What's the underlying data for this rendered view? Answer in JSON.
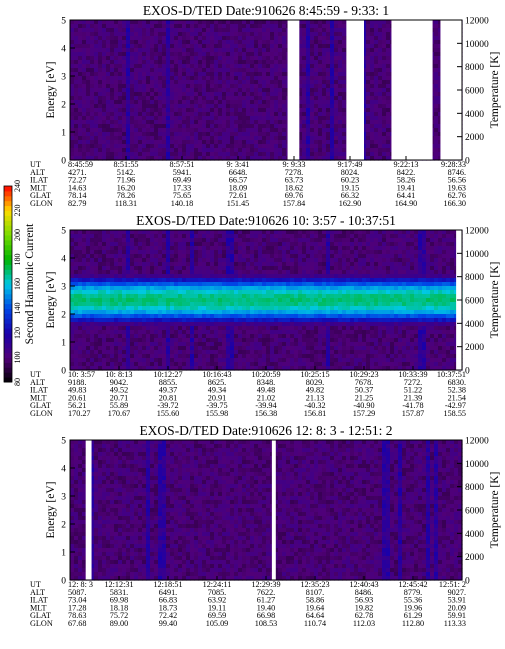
{
  "chart_data": [
    {
      "type": "heatmap",
      "title": "EXOS-D/TED   Date:910626  8:45:59 - 9:33: 1",
      "ylabel": "Energy [eV]",
      "y2label": "Temperature [K]",
      "ylim": [
        0,
        5
      ],
      "y2lim": [
        0,
        12000
      ],
      "yticks": [
        "0",
        "1",
        "2",
        "3",
        "4",
        "5"
      ],
      "y2ticks": [
        "0",
        "2000",
        "4000",
        "6000",
        "8000",
        "10000",
        "12000"
      ],
      "background_level": 100,
      "row_labels": [
        "UT",
        "ALT",
        "ILAT",
        "MLT",
        "GLAT",
        "GLON"
      ],
      "table": [
        [
          "8:45:59",
          "4271.",
          "72.27",
          "14.63",
          "78.14",
          "82.79"
        ],
        [
          "8:51:55",
          "5142.",
          "71.96",
          "16.20",
          "78.26",
          "118.31"
        ],
        [
          "8:57:51",
          "5941.",
          "69.49",
          "17.33",
          "75.65",
          "140.18"
        ],
        [
          "9: 3:41",
          "6648.",
          "66.57",
          "18.09",
          "72.61",
          "151.45"
        ],
        [
          "9: 9:33",
          "7278.",
          "63.73",
          "18.62",
          "69.76",
          "157.84"
        ],
        [
          "9:17:49",
          "8024.",
          "60.23",
          "19.15",
          "66.32",
          "162.90"
        ],
        [
          "9:22:13",
          "8422.",
          "58.26",
          "19.41",
          "64.41",
          "164.90"
        ],
        [
          "9:28:33",
          "8746.",
          "56.56",
          "19.63",
          "62.76",
          "166.30"
        ]
      ],
      "data_gaps": [
        [
          0.555,
          0.585
        ],
        [
          0.705,
          0.75
        ],
        [
          0.82,
          0.925
        ],
        [
          0.945,
          1.0
        ]
      ]
    },
    {
      "type": "heatmap",
      "title": "EXOS-D/TED   Date:910626  10: 3:57 - 10:37:51",
      "ylabel": "Energy [eV]",
      "y2label": "Temperature [K]",
      "ylim": [
        0,
        5
      ],
      "y2lim": [
        0,
        12000
      ],
      "yticks": [
        "0",
        "1",
        "2",
        "3",
        "4",
        "5"
      ],
      "y2ticks": [
        "0",
        "2000",
        "4000",
        "6000",
        "8000",
        "10000",
        "12000"
      ],
      "background_level": 100,
      "band": {
        "center_energy": 2.5,
        "half_width": 0.9,
        "peak_level": 170
      },
      "row_labels": [
        "UT",
        "ALT",
        "ILAT",
        "MLT",
        "GLAT",
        "GLON"
      ],
      "table": [
        [
          "10: 3:57",
          "9188.",
          "49.83",
          "20.61",
          "56.21",
          "170.27"
        ],
        [
          "10: 8:13",
          "9042.",
          "49.52",
          "20.71",
          "55.89",
          "170.67"
        ],
        [
          "10:12:27",
          "8855.",
          "49.37",
          "20.81",
          "-39.72",
          "155.60"
        ],
        [
          "10:16:43",
          "8625.",
          "49.34",
          "20.91",
          "-39.75",
          "155.98"
        ],
        [
          "10:20:59",
          "8348.",
          "49.48",
          "21.02",
          "-39.94",
          "156.38"
        ],
        [
          "10:25:15",
          "8029.",
          "49.82",
          "21.13",
          "-40.32",
          "156.81"
        ],
        [
          "10:29:23",
          "7678.",
          "50.37",
          "21.25",
          "-40.90",
          "157.29"
        ],
        [
          "10:33:39",
          "7272.",
          "51.22",
          "21.39",
          "-41.78",
          "157.87"
        ],
        [
          "10:37:51",
          "6830.",
          "52.38",
          "21.54",
          "-42.97",
          "158.55"
        ]
      ],
      "data_gaps": [
        [
          0.985,
          1.0
        ]
      ]
    },
    {
      "type": "heatmap",
      "title": "EXOS-D/TED   Date:910626  12: 8: 3 - 12:51: 2",
      "ylabel": "Energy [eV]",
      "y2label": "Temperature [K]",
      "ylim": [
        0,
        5
      ],
      "y2lim": [
        0,
        12000
      ],
      "yticks": [
        "0",
        "1",
        "2",
        "3",
        "4",
        "5"
      ],
      "y2ticks": [
        "0",
        "2000",
        "4000",
        "6000",
        "8000",
        "10000",
        "12000"
      ],
      "background_level": 100,
      "row_labels": [
        "UT",
        "ALT",
        "ILAT",
        "MLT",
        "GLAT",
        "GLON"
      ],
      "table": [
        [
          "12: 8: 3",
          "5087.",
          "73.04",
          "17.28",
          "78.63",
          "67.68"
        ],
        [
          "12:12:31",
          "5831.",
          "69.98",
          "18.18",
          "75.72",
          "89.00"
        ],
        [
          "12:18:51",
          "6491.",
          "66.83",
          "18.73",
          "72.42",
          "99.40"
        ],
        [
          "12:24:11",
          "7085.",
          "63.92",
          "19.11",
          "69.59",
          "105.09"
        ],
        [
          "12:29:39",
          "7622.",
          "61.27",
          "19.40",
          "66.98",
          "108.53"
        ],
        [
          "12:35:23",
          "8107.",
          "58.86",
          "19.64",
          "64.64",
          "110.74"
        ],
        [
          "12:40:43",
          "8486.",
          "56.93",
          "19.82",
          "62.78",
          "112.03"
        ],
        [
          "12:45:42",
          "8779.",
          "55.36",
          "19.96",
          "61.29",
          "112.80"
        ],
        [
          "12:51: 2",
          "9027.",
          "53.91",
          "20.09",
          "59.91",
          "113.33"
        ]
      ],
      "data_gaps": [
        [
          0.04,
          0.055
        ],
        [
          0.515,
          0.525
        ]
      ]
    },
    {
      "type": "colorbar",
      "label": "Second Harmonic Current",
      "ticks": [
        "80",
        "100",
        "120",
        "140",
        "160",
        "180",
        "200",
        "220",
        "240"
      ],
      "range": [
        80,
        240
      ]
    }
  ]
}
